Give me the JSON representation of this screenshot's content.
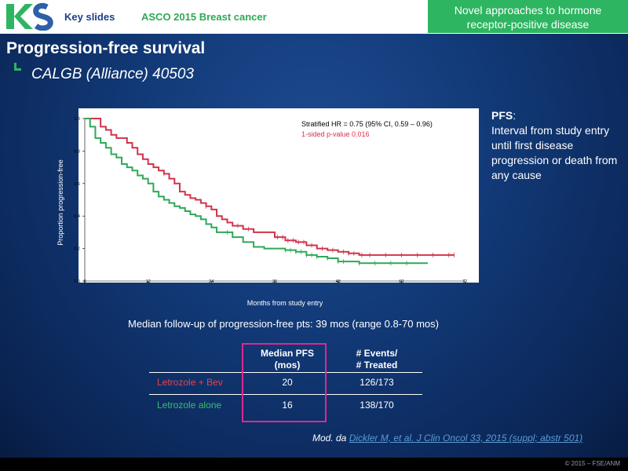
{
  "header": {
    "logo_text": "KS",
    "key_slides": "Key slides",
    "conference": "ASCO 2015 Breast cancer",
    "topic_line1": "Novel approaches to hormone",
    "topic_line2": "receptor-positive disease"
  },
  "slide": {
    "title": "Progression-free survival",
    "subtitle": "CALGB (Alliance) 40503"
  },
  "chart_data": {
    "type": "line",
    "xlabel": "Months from study entry",
    "ylabel": "Proportion progression-free",
    "xlim": [
      0,
      72
    ],
    "ylim": [
      0,
      1.0
    ],
    "x_ticks": [
      "0",
      "12",
      "24",
      "36",
      "48",
      "60",
      "72"
    ],
    "y_ticks": [
      "0.0",
      "0.2",
      "0.4",
      "0.6",
      "0.8",
      "1.0"
    ],
    "annotation_hr": "Stratified HR = 0.75 (95% CI,  0.59 – 0.96)",
    "annotation_p": "1-sided p-value 0.016",
    "series": [
      {
        "name": "Letrozole + Bev",
        "color": "#d2334a",
        "x": [
          0,
          2,
          3,
          4,
          5,
          6,
          7,
          8,
          9,
          10,
          11,
          12,
          13,
          14,
          15,
          16,
          17,
          18,
          19,
          20,
          21,
          22,
          23,
          24,
          25,
          26,
          27,
          28,
          30,
          32,
          34,
          36,
          38,
          40,
          42,
          44,
          46,
          48,
          50,
          52,
          56,
          60,
          64,
          70
        ],
        "y": [
          1.0,
          1.0,
          0.95,
          0.93,
          0.9,
          0.88,
          0.88,
          0.85,
          0.82,
          0.78,
          0.75,
          0.72,
          0.7,
          0.68,
          0.66,
          0.63,
          0.6,
          0.55,
          0.53,
          0.51,
          0.5,
          0.48,
          0.46,
          0.44,
          0.4,
          0.38,
          0.36,
          0.34,
          0.32,
          0.3,
          0.3,
          0.27,
          0.25,
          0.24,
          0.22,
          0.2,
          0.19,
          0.18,
          0.17,
          0.16,
          0.16,
          0.16,
          0.16,
          0.16
        ],
        "censor_x": [
          15,
          23,
          29,
          31,
          36.5,
          37.5,
          38.5,
          39.5,
          40.5,
          41.5,
          43,
          45,
          47,
          49,
          50,
          51,
          52.5,
          54,
          57,
          60,
          63,
          66,
          69,
          70
        ]
      },
      {
        "name": "Letrozole alone",
        "color": "#2fa858",
        "x": [
          0,
          1,
          2,
          3,
          4,
          5,
          6,
          7,
          8,
          9,
          10,
          11,
          12,
          13,
          14,
          15,
          16,
          17,
          18,
          19,
          20,
          21,
          22,
          23,
          24,
          25,
          26,
          28,
          30,
          32,
          34,
          36,
          38,
          40,
          42,
          44,
          46,
          48,
          52,
          56,
          60,
          65
        ],
        "y": [
          1.0,
          0.95,
          0.88,
          0.85,
          0.82,
          0.78,
          0.76,
          0.72,
          0.7,
          0.68,
          0.65,
          0.63,
          0.6,
          0.55,
          0.52,
          0.5,
          0.48,
          0.46,
          0.45,
          0.43,
          0.41,
          0.4,
          0.38,
          0.35,
          0.33,
          0.3,
          0.3,
          0.27,
          0.24,
          0.21,
          0.2,
          0.2,
          0.19,
          0.18,
          0.16,
          0.15,
          0.14,
          0.12,
          0.11,
          0.11,
          0.11,
          0.11
        ],
        "censor_x": [
          27,
          38,
          39,
          40,
          41,
          42,
          43,
          44,
          46,
          48,
          49,
          52,
          55,
          58,
          61
        ]
      }
    ]
  },
  "pfs_definition": {
    "label": "PFS",
    "colon": ":",
    "text": "Interval from study entry until first disease progression or death from any cause"
  },
  "followup": "Median follow-up of progression-free pts: 39 mos (range 0.8-70 mos)",
  "table": {
    "col2_header_line1": "Median PFS",
    "col2_header_line2": "(mos)",
    "col3_header_line1": "# Events/",
    "col3_header_line2": "# Treated",
    "rows": [
      {
        "arm": "Letrozole + Bev",
        "arm_color": "#e8424a",
        "median": "20",
        "events": "126/173"
      },
      {
        "arm": "Letrozole alone",
        "arm_color": "#3bbf6a",
        "median": "16",
        "events": "138/170"
      }
    ]
  },
  "reference": {
    "prefix": "Mod. da ",
    "link": "Dickler M, et al. J Clin Oncol 33, 2015 (suppl; abstr 501)"
  },
  "footer": {
    "copyright": "© 2015 – FSE/ANM"
  }
}
